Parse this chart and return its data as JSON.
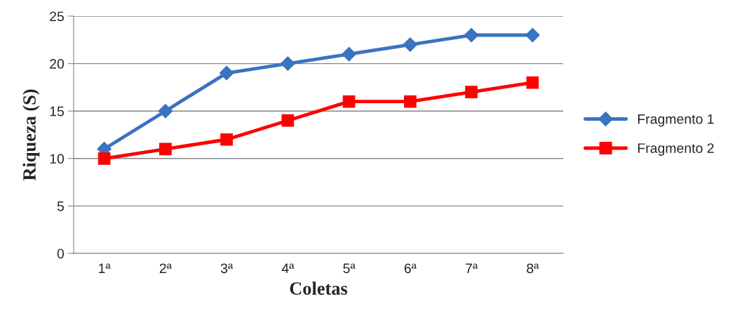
{
  "chart_data": {
    "type": "line",
    "xlabel": "Coletas",
    "ylabel": "Riqueza (S)",
    "categories": [
      "1ª",
      "2ª",
      "3ª",
      "4ª",
      "5ª",
      "6ª",
      "7ª",
      "8ª"
    ],
    "series": [
      {
        "name": "Fragmento 1",
        "color": "#3a73c0",
        "marker": "diamond",
        "values": [
          11,
          15,
          19,
          20,
          21,
          22,
          23,
          23
        ]
      },
      {
        "name": "Fragmento 2",
        "color": "#ff0000",
        "marker": "square",
        "values": [
          10,
          11,
          12,
          14,
          16,
          16,
          17,
          18
        ]
      }
    ],
    "ylim": [
      0,
      25
    ],
    "yticks": [
      0,
      5,
      10,
      15,
      20,
      25
    ],
    "grid": "y",
    "legend": "right",
    "line_style": "solid"
  }
}
